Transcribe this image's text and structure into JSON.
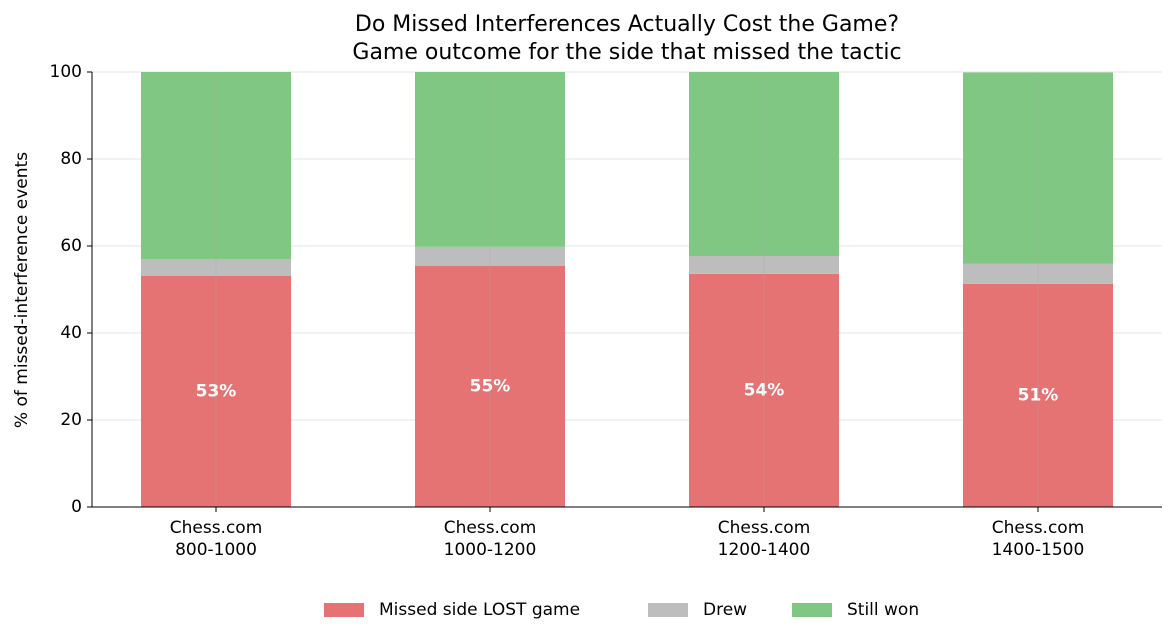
{
  "chart_data": {
    "type": "stacked-bar",
    "title": "Do Missed Interferences Actually Cost the Game?",
    "subtitle": "Game outcome for the side that missed the tactic",
    "y_label": "% of missed-interference events",
    "categories": [
      [
        "Chess.com",
        "800-1000"
      ],
      [
        "Chess.com",
        "1000-1200"
      ],
      [
        "Chess.com",
        "1200-1400"
      ],
      [
        "Chess.com",
        "1400-1500"
      ]
    ],
    "series": [
      {
        "name": "Missed side LOST game",
        "color": "#e57373",
        "values": [
          53.1,
          55.4,
          53.6,
          51.3
        ],
        "value_labels": [
          "53%",
          "55%",
          "54%",
          "51%"
        ]
      },
      {
        "name": "Drew",
        "color": "#bdbdbd",
        "values": [
          3.9,
          4.4,
          4.1,
          4.6
        ]
      },
      {
        "name": "Still won",
        "color": "#81c784",
        "values": [
          43.0,
          40.2,
          42.3,
          44.0
        ]
      }
    ],
    "ylim": [
      0,
      100
    ],
    "yticks": [
      0,
      20,
      40,
      60,
      80,
      100
    ],
    "grid": true,
    "legend": "bottom"
  }
}
